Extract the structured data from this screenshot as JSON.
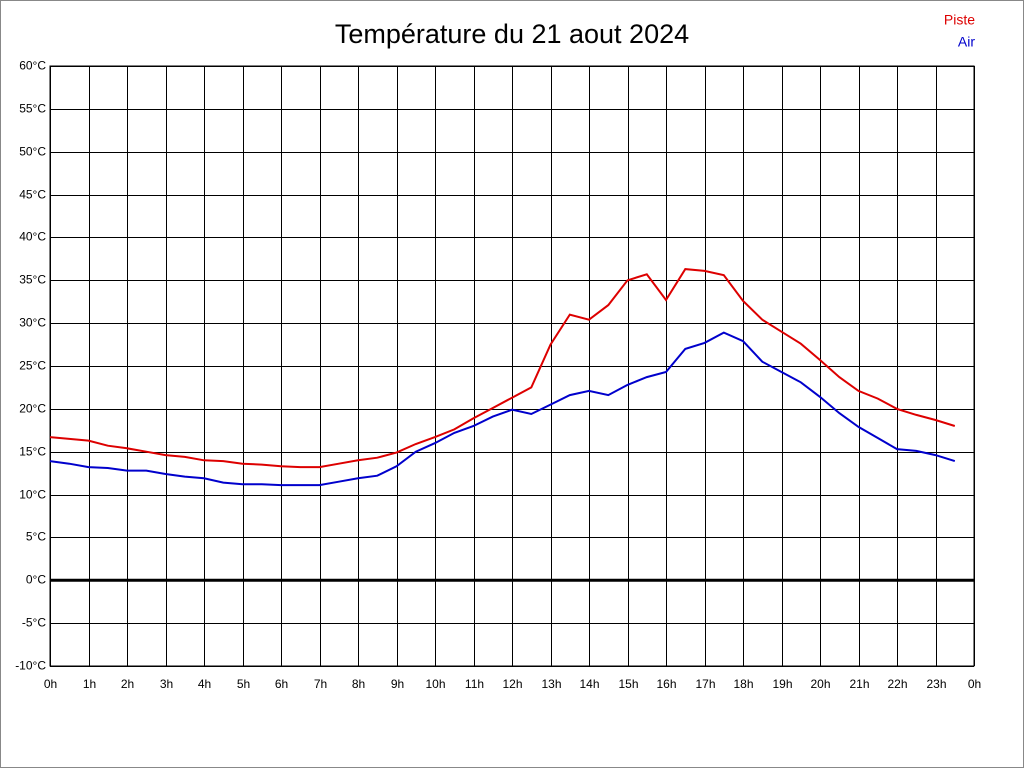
{
  "chart_data": {
    "type": "line",
    "title": "Température du 21 aout 2024",
    "x": [
      0,
      0.5,
      1,
      1.5,
      2,
      2.5,
      3,
      3.5,
      4,
      4.5,
      5,
      5.5,
      6,
      6.5,
      7,
      7.5,
      8,
      8.5,
      9,
      9.5,
      10,
      10.5,
      11,
      11.5,
      12,
      12.5,
      13,
      13.5,
      14,
      14.5,
      15,
      15.5,
      16,
      16.5,
      17,
      17.5,
      18,
      18.5,
      19,
      19.5,
      20,
      20.5,
      21,
      21.5,
      22,
      22.5,
      23,
      23.5
    ],
    "series": [
      {
        "name": "Piste",
        "color": "#dd0000",
        "values": [
          16.7,
          16.5,
          16.3,
          15.7,
          15.4,
          15.0,
          14.6,
          14.4,
          14.0,
          13.9,
          13.6,
          13.5,
          13.3,
          13.2,
          13.2,
          13.6,
          14.0,
          14.3,
          14.9,
          15.9,
          16.7,
          17.6,
          18.9,
          20.1,
          21.3,
          22.5,
          27.5,
          31.0,
          30.4,
          32.1,
          35.0,
          35.7,
          32.7,
          36.3,
          36.1,
          35.6,
          32.6,
          30.4,
          29.0,
          27.6,
          25.7,
          23.7,
          22.1,
          21.2,
          20.0,
          19.3,
          18.7,
          18.0
        ]
      },
      {
        "name": "Air",
        "color": "#0000cc",
        "values": [
          13.9,
          13.6,
          13.2,
          13.1,
          12.8,
          12.8,
          12.4,
          12.1,
          11.9,
          11.4,
          11.2,
          11.2,
          11.1,
          11.1,
          11.1,
          11.5,
          11.9,
          12.2,
          13.3,
          15.0,
          16.0,
          17.2,
          18.0,
          19.1,
          19.9,
          19.4,
          20.5,
          21.6,
          22.1,
          21.6,
          22.8,
          23.7,
          24.3,
          27.0,
          27.7,
          28.9,
          27.9,
          25.5,
          24.3,
          23.1,
          21.4,
          19.5,
          17.9,
          16.6,
          15.3,
          15.1,
          14.6,
          13.9
        ]
      }
    ],
    "xlim": [
      0,
      24
    ],
    "xticks": [
      {
        "value": 0,
        "label": "0h"
      },
      {
        "value": 1,
        "label": "1h"
      },
      {
        "value": 2,
        "label": "2h"
      },
      {
        "value": 3,
        "label": "3h"
      },
      {
        "value": 4,
        "label": "4h"
      },
      {
        "value": 5,
        "label": "5h"
      },
      {
        "value": 6,
        "label": "6h"
      },
      {
        "value": 7,
        "label": "7h"
      },
      {
        "value": 8,
        "label": "8h"
      },
      {
        "value": 9,
        "label": "9h"
      },
      {
        "value": 10,
        "label": "10h"
      },
      {
        "value": 11,
        "label": "11h"
      },
      {
        "value": 12,
        "label": "12h"
      },
      {
        "value": 13,
        "label": "13h"
      },
      {
        "value": 14,
        "label": "14h"
      },
      {
        "value": 15,
        "label": "15h"
      },
      {
        "value": 16,
        "label": "16h"
      },
      {
        "value": 17,
        "label": "17h"
      },
      {
        "value": 18,
        "label": "18h"
      },
      {
        "value": 19,
        "label": "19h"
      },
      {
        "value": 20,
        "label": "20h"
      },
      {
        "value": 21,
        "label": "21h"
      },
      {
        "value": 22,
        "label": "22h"
      },
      {
        "value": 23,
        "label": "23h"
      },
      {
        "value": 24,
        "label": "0h"
      }
    ],
    "ylim": [
      -10,
      60
    ],
    "yticks": [
      {
        "value": -10,
        "label": "-10°C"
      },
      {
        "value": -5,
        "label": "-5°C"
      },
      {
        "value": 0,
        "label": "0°C"
      },
      {
        "value": 5,
        "label": "5°C"
      },
      {
        "value": 10,
        "label": "10°C"
      },
      {
        "value": 15,
        "label": "15°C"
      },
      {
        "value": 20,
        "label": "20°C"
      },
      {
        "value": 25,
        "label": "25°C"
      },
      {
        "value": 30,
        "label": "30°C"
      },
      {
        "value": 35,
        "label": "35°C"
      },
      {
        "value": 40,
        "label": "40°C"
      },
      {
        "value": 45,
        "label": "45°C"
      },
      {
        "value": 50,
        "label": "50°C"
      },
      {
        "value": 55,
        "label": "55°C"
      },
      {
        "value": 60,
        "label": "60°C"
      }
    ],
    "grid": true,
    "zero_line": true,
    "legend": "top-right"
  }
}
